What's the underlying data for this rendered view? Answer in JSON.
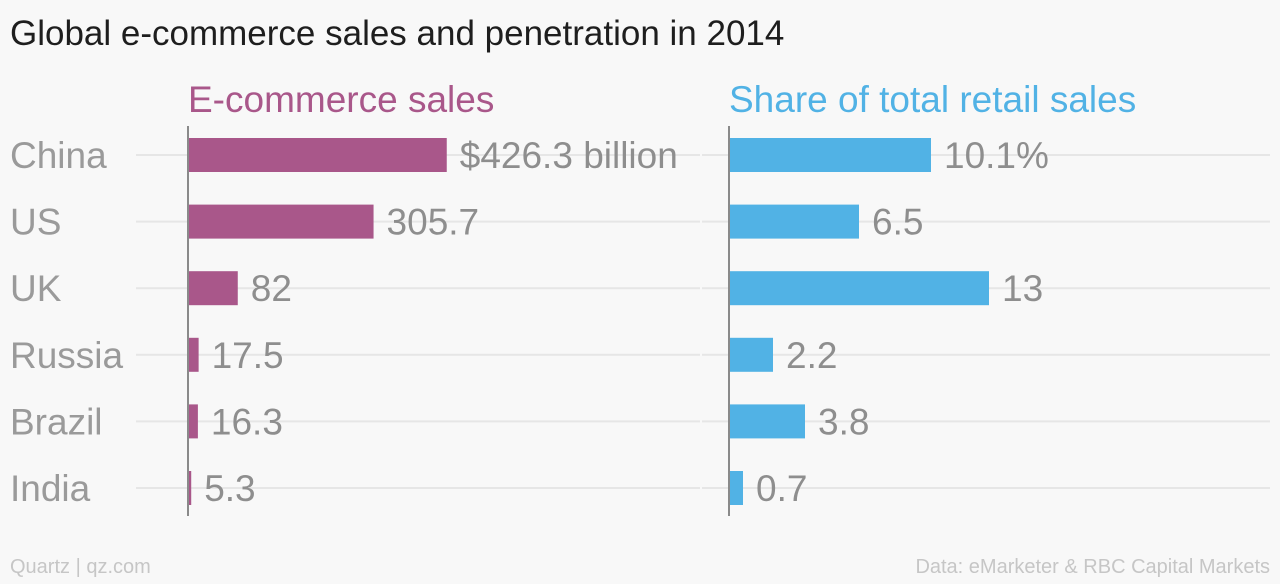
{
  "title": "Global e-commerce sales and penetration in 2014",
  "footer": {
    "credit": "Quartz | qz.com",
    "source": "Data: eMarketer & RBC Capital Markets"
  },
  "chart_data": {
    "type": "bar",
    "orientation": "horizontal",
    "categories": [
      "China",
      "US",
      "UK",
      "Russia",
      "Brazil",
      "India"
    ],
    "panels": [
      {
        "name": "E-commerce sales",
        "color": "#a9578a",
        "values": [
          426.3,
          305.7,
          82,
          17.5,
          16.3,
          5.3
        ],
        "labels": [
          "$426.3 billion",
          "305.7",
          "82",
          "17.5",
          "16.3",
          "5.3"
        ],
        "xlim": [
          0,
          430
        ]
      },
      {
        "name": "Share of total retail sales",
        "color": "#51b2e5",
        "values": [
          10.1,
          6.5,
          13,
          2.2,
          3.8,
          0.7
        ],
        "labels": [
          "10.1%",
          "6.5",
          "13",
          "2.2",
          "3.8",
          "0.7"
        ],
        "xlim": [
          0,
          13
        ]
      }
    ],
    "grid": true,
    "colors": {
      "category_text": "#9a9a9a",
      "value_text": "#8e8e8e",
      "gridline": "#e6e6e6",
      "axis": "#8a8a8a"
    }
  }
}
